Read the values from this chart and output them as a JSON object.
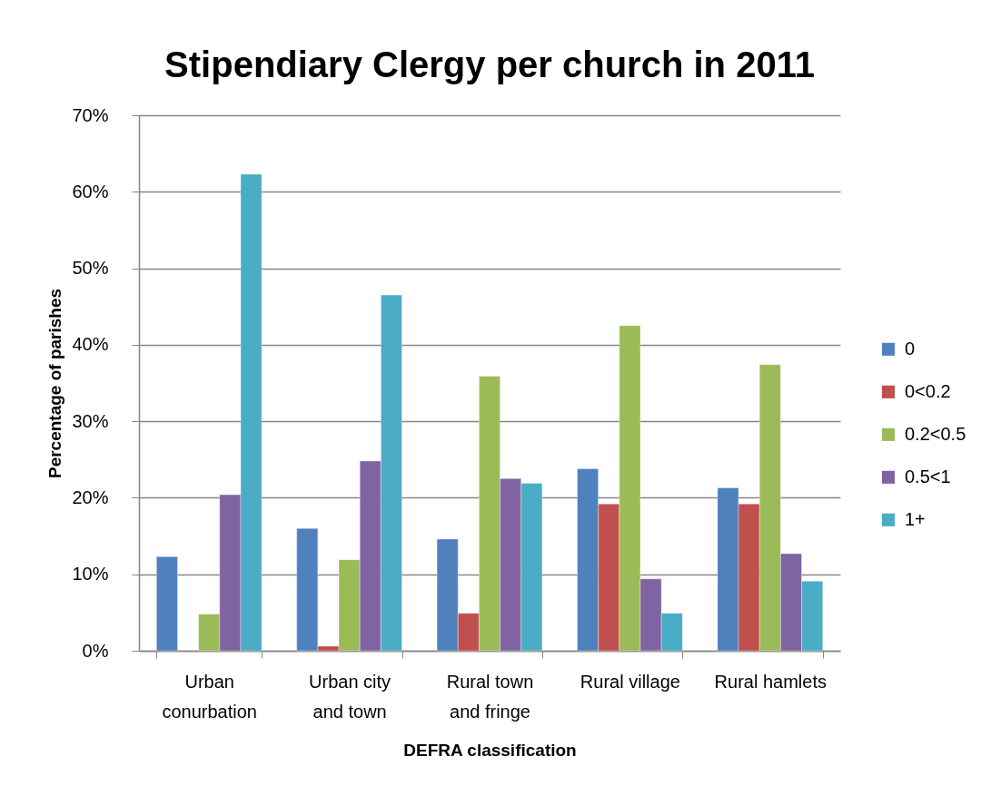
{
  "chart_data": {
    "type": "bar",
    "title": "Stipendiary Clergy per church in 2011",
    "xlabel": "DEFRA classification",
    "ylabel": "Percentage of parishes",
    "categories": [
      "Urban conurbation",
      "Urban city and town",
      "Rural town and fringe",
      "Rural village",
      "Rural hamlets"
    ],
    "series": [
      {
        "name": "0",
        "color": "#4f81bd",
        "values": [
          12.3,
          16.0,
          14.6,
          23.8,
          21.3
        ]
      },
      {
        "name": "0<0.2",
        "color": "#c0504d",
        "values": [
          null,
          0.6,
          4.9,
          19.2,
          19.2
        ]
      },
      {
        "name": "0.2<0.5",
        "color": "#9bbb59",
        "values": [
          4.8,
          11.9,
          35.9,
          42.5,
          37.4
        ]
      },
      {
        "name": "0.5<1",
        "color": "#8064a2",
        "values": [
          20.4,
          24.8,
          22.5,
          9.4,
          12.7
        ]
      },
      {
        "name": "1+",
        "color": "#4bacc6",
        "values": [
          62.3,
          46.5,
          21.9,
          4.9,
          9.1
        ]
      }
    ],
    "ylim": [
      0,
      70
    ],
    "yticks": [
      {
        "value": 0,
        "label": "0%"
      },
      {
        "value": 10,
        "label": "10%"
      },
      {
        "value": 20,
        "label": "20%"
      },
      {
        "value": 30,
        "label": "30%"
      },
      {
        "value": 40,
        "label": "40%"
      },
      {
        "value": 50,
        "label": "50%"
      },
      {
        "value": 60,
        "label": "60%"
      },
      {
        "value": 70,
        "label": "70%"
      }
    ],
    "grid": "y",
    "legend": "right"
  }
}
